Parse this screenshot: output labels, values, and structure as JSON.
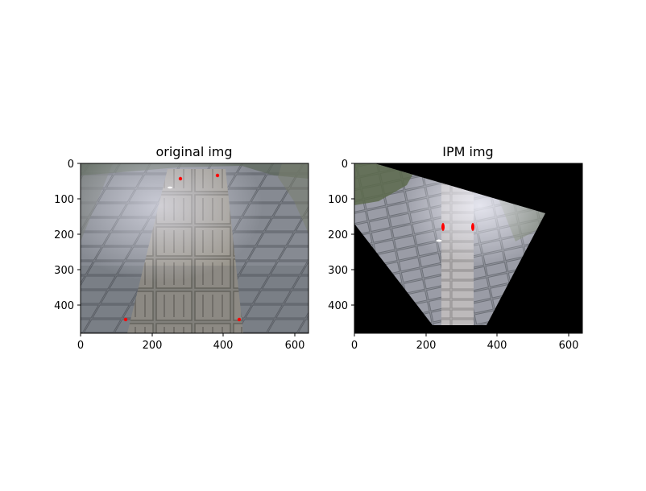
{
  "panels": [
    {
      "title": "original img",
      "x_ticks": [
        "0",
        "200",
        "400",
        "600"
      ],
      "y_ticks": [
        "0",
        "100",
        "200",
        "300",
        "400"
      ],
      "x_range": [
        0,
        640
      ],
      "y_range": [
        0,
        480
      ],
      "marker_color": "#ff0000",
      "background": "pavement photo with tactile paving strip"
    },
    {
      "title": "IPM img",
      "x_ticks": [
        "0",
        "200",
        "400",
        "600"
      ],
      "y_ticks": [
        "0",
        "100",
        "200",
        "300",
        "400"
      ],
      "x_range": [
        0,
        640
      ],
      "y_range": [
        0,
        480
      ],
      "marker_color": "#ff0000",
      "background": "bird's-eye warped pavement on black"
    }
  ]
}
